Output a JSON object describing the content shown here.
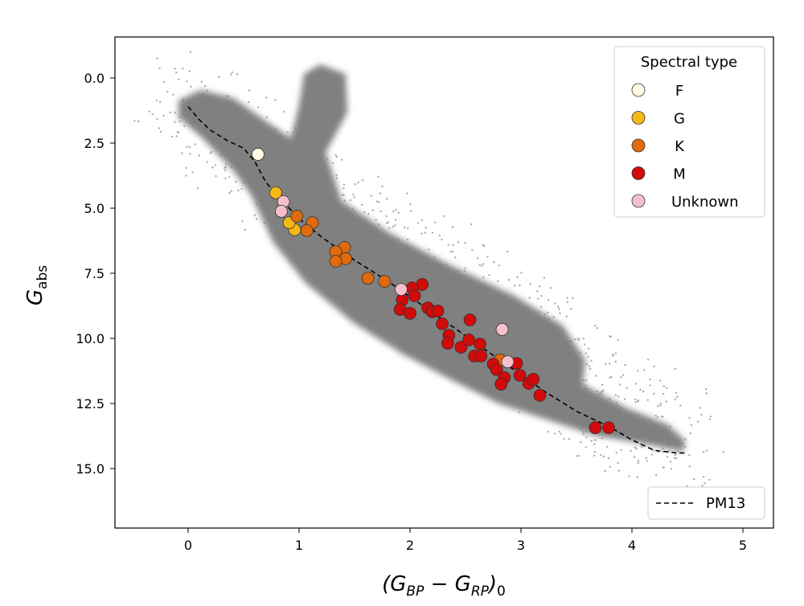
{
  "chart_data": {
    "type": "scatter",
    "xlabel": "(G_BP − G_RP)_0",
    "ylabel": "G_abs",
    "xlim": [
      -0.66,
      5.28
    ],
    "ylim": [
      17.28,
      -1.57
    ],
    "y_inverted": true,
    "grid": false,
    "xticks": [
      "0",
      "1",
      "2",
      "3",
      "4",
      "5"
    ],
    "yticks": [
      "0.0",
      "2.5",
      "5.0",
      "7.5",
      "10.0",
      "12.5",
      "15.0"
    ],
    "legend": {
      "title": "Spectral type",
      "placement": "top-right",
      "entries": [
        "F",
        "G",
        "K",
        "M",
        "Unknown"
      ]
    },
    "line_legend": {
      "placement": "bottom-right",
      "entries": [
        "PM13"
      ]
    },
    "background": {
      "description_color": "#808080"
    },
    "series": [
      {
        "name": "F",
        "color": "#fffbe6",
        "points": [
          [
            0.63,
            2.93
          ]
        ]
      },
      {
        "name": "G",
        "color": "#f5b915",
        "points": [
          [
            0.79,
            4.41
          ],
          [
            0.96,
            5.83
          ],
          [
            0.91,
            5.56
          ]
        ]
      },
      {
        "name": "K",
        "color": "#e06a0c",
        "points": [
          [
            0.98,
            5.31
          ],
          [
            1.12,
            5.56
          ],
          [
            1.07,
            5.86
          ],
          [
            1.41,
            6.51
          ],
          [
            1.33,
            6.67
          ],
          [
            1.42,
            6.94
          ],
          [
            1.33,
            7.04
          ],
          [
            1.62,
            7.69
          ],
          [
            1.77,
            7.81
          ],
          [
            2.81,
            10.83
          ]
        ]
      },
      {
        "name": "M",
        "color": "#d10a0a",
        "points": [
          [
            2.11,
            7.93
          ],
          [
            2.02,
            8.06
          ],
          [
            2.04,
            8.36
          ],
          [
            1.93,
            8.52
          ],
          [
            1.91,
            8.89
          ],
          [
            2.0,
            9.04
          ],
          [
            2.16,
            8.83
          ],
          [
            2.2,
            8.98
          ],
          [
            2.25,
            8.95
          ],
          [
            2.29,
            9.44
          ],
          [
            2.35,
            9.88
          ],
          [
            2.34,
            10.19
          ],
          [
            2.46,
            10.34
          ],
          [
            2.53,
            10.06
          ],
          [
            2.63,
            10.22
          ],
          [
            2.58,
            10.68
          ],
          [
            2.64,
            10.68
          ],
          [
            2.54,
            9.29
          ],
          [
            2.75,
            10.99
          ],
          [
            2.78,
            11.2
          ],
          [
            2.85,
            11.51
          ],
          [
            2.82,
            11.76
          ],
          [
            2.96,
            10.96
          ],
          [
            2.99,
            11.42
          ],
          [
            3.07,
            11.73
          ],
          [
            3.11,
            11.57
          ],
          [
            3.17,
            12.19
          ],
          [
            3.67,
            13.43
          ],
          [
            3.79,
            13.43
          ]
        ]
      },
      {
        "name": "Unknown",
        "color": "#f7bfcc",
        "points": [
          [
            0.86,
            4.75
          ],
          [
            0.84,
            5.12
          ],
          [
            1.92,
            8.12
          ],
          [
            2.83,
            9.66
          ],
          [
            2.88,
            10.9
          ]
        ]
      }
    ],
    "lines": [
      {
        "name": "PM13",
        "style": "dashed",
        "color": "#000000",
        "points": [
          [
            0,
            1.1
          ],
          [
            0.1,
            1.6
          ],
          [
            0.2,
            2.0
          ],
          [
            0.35,
            2.4
          ],
          [
            0.5,
            2.7
          ],
          [
            0.6,
            3.2
          ],
          [
            0.7,
            4.0
          ],
          [
            0.8,
            4.5
          ],
          [
            1.0,
            5.4
          ],
          [
            1.2,
            6.1
          ],
          [
            1.5,
            7.0
          ],
          [
            1.8,
            7.8
          ],
          [
            2.0,
            8.4
          ],
          [
            2.3,
            9.3
          ],
          [
            2.6,
            10.2
          ],
          [
            2.9,
            11.1
          ],
          [
            3.2,
            12.0
          ],
          [
            3.5,
            12.8
          ],
          [
            3.8,
            13.4
          ],
          [
            4.0,
            13.9
          ],
          [
            4.2,
            14.3
          ],
          [
            4.4,
            14.4
          ],
          [
            4.5,
            14.4
          ]
        ]
      }
    ]
  }
}
